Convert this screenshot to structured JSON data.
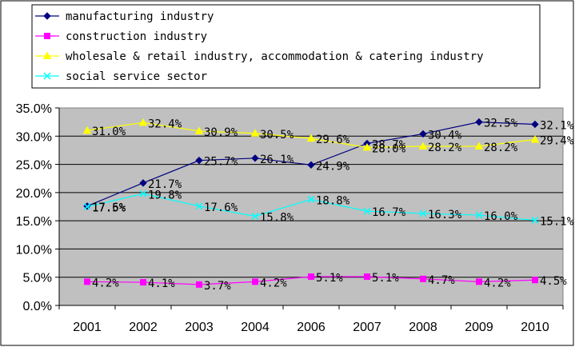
{
  "chart_data": {
    "type": "line",
    "title": "",
    "xlabel": "",
    "ylabel": "",
    "categories": [
      "2001",
      "2002",
      "2003",
      "2004",
      "2006",
      "2007",
      "2008",
      "2009",
      "2010"
    ],
    "ylim": [
      0,
      35
    ],
    "yticks": [
      "0.0%",
      "5.0%",
      "10.0%",
      "15.0%",
      "20.0%",
      "25.0%",
      "30.0%",
      "35.0%"
    ],
    "grid": true,
    "legend_position": "top",
    "series": [
      {
        "name": "manufacturing industry",
        "color": "#000080",
        "marker": "diamond",
        "values": [
          17.6,
          21.7,
          25.7,
          26.1,
          24.9,
          28.7,
          30.4,
          32.5,
          32.1
        ],
        "labels": [
          "17.6%",
          "21.7%",
          "25.7%",
          "26.1%",
          "24.9%",
          "28.7%",
          "30.4%",
          "32.5%",
          "32.1%"
        ]
      },
      {
        "name": "construction industry",
        "color": "#ff00ff",
        "marker": "square",
        "values": [
          4.2,
          4.1,
          3.7,
          4.2,
          5.1,
          5.1,
          4.7,
          4.2,
          4.5
        ],
        "labels": [
          "4.2%",
          "4.1%",
          "3.7%",
          "4.2%",
          "5.1%",
          "5.1%",
          "4.7%",
          "4.2%",
          "4.5%"
        ]
      },
      {
        "name": "wholesale & retail industry, accommodation & catering industry",
        "color": "#ffff00",
        "marker": "triangle",
        "values": [
          31.0,
          32.4,
          30.9,
          30.5,
          29.6,
          28.0,
          28.2,
          28.2,
          29.4
        ],
        "labels": [
          "31.0%",
          "32.4%",
          "30.9%",
          "30.5%",
          "29.6%",
          "28.0%",
          "28.2%",
          "28.2%",
          "29.4%"
        ]
      },
      {
        "name": "social service sector",
        "color": "#00ffff",
        "marker": "x",
        "values": [
          17.5,
          19.8,
          17.6,
          15.8,
          18.8,
          16.7,
          16.3,
          16.0,
          15.1
        ],
        "labels": [
          "17.5%",
          "19.8%",
          "17.6%",
          "15.8%",
          "18.8%",
          "16.7%",
          "16.3%",
          "16.0%",
          "15.1%"
        ]
      }
    ]
  }
}
